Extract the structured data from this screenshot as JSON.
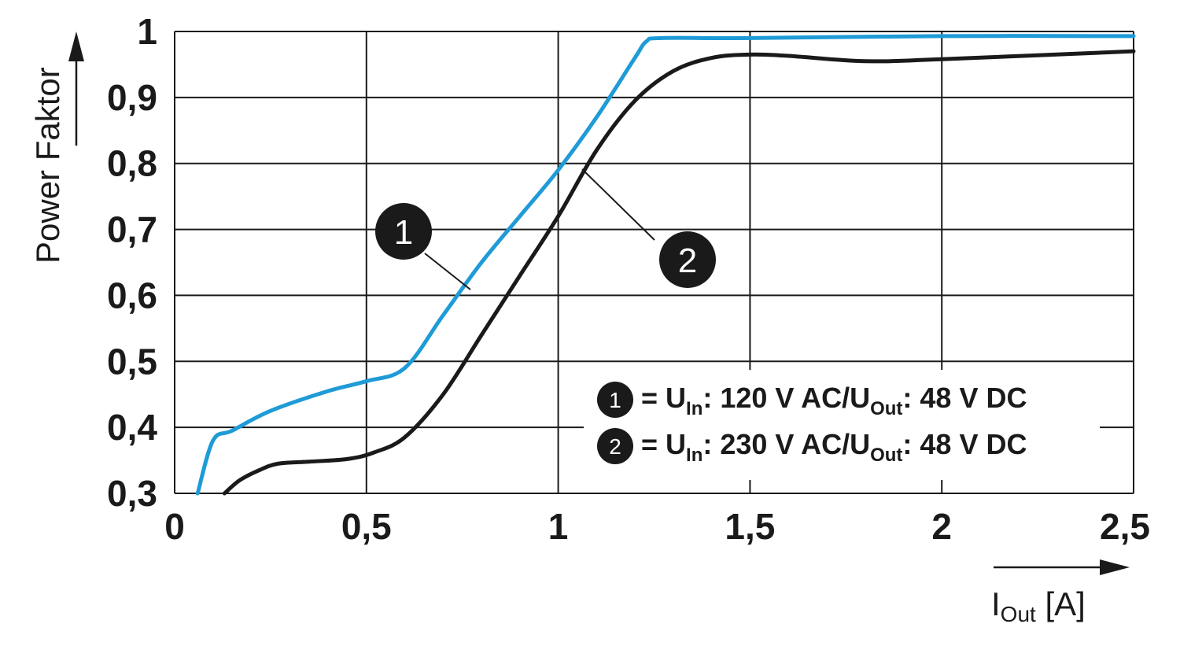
{
  "chart_data": {
    "type": "line",
    "xlim": [
      0,
      2.5
    ],
    "ylim": [
      0.3,
      1.0
    ],
    "x_ticks": [
      0,
      0.5,
      1,
      1.5,
      2,
      2.5
    ],
    "x_tick_labels": [
      "0",
      "0,5",
      "1",
      "1,5",
      "2",
      "2,5"
    ],
    "y_ticks": [
      0.3,
      0.4,
      0.5,
      0.6,
      0.7,
      0.8,
      0.9,
      1.0
    ],
    "y_tick_labels": [
      "0,3",
      "0,4",
      "0,5",
      "0,6",
      "0,7",
      "0,8",
      "0,9",
      "1"
    ],
    "grid": true,
    "ylabel": "Power Faktor",
    "xlabel": {
      "main": "I",
      "sub": "Out",
      "unit": " [A]"
    },
    "series": [
      {
        "marker": "1",
        "color": "#1f9bd7",
        "x": [
          0.06,
          0.1,
          0.15,
          0.25,
          0.4,
          0.5,
          0.6,
          0.7,
          0.8,
          0.9,
          1.0,
          1.1,
          1.2,
          1.23,
          1.27,
          1.5,
          2.0,
          2.5
        ],
        "y": [
          0.3,
          0.38,
          0.395,
          0.425,
          0.455,
          0.47,
          0.49,
          0.57,
          0.65,
          0.72,
          0.79,
          0.87,
          0.96,
          0.985,
          0.99,
          0.99,
          0.993,
          0.993
        ]
      },
      {
        "marker": "2",
        "color": "#1a1a1a",
        "x": [
          0.13,
          0.17,
          0.22,
          0.27,
          0.35,
          0.45,
          0.52,
          0.6,
          0.7,
          0.8,
          0.9,
          1.0,
          1.1,
          1.2,
          1.3,
          1.4,
          1.5,
          1.6,
          1.8,
          2.0,
          2.5
        ],
        "y": [
          0.3,
          0.32,
          0.335,
          0.345,
          0.348,
          0.352,
          0.362,
          0.385,
          0.45,
          0.54,
          0.63,
          0.72,
          0.82,
          0.895,
          0.94,
          0.96,
          0.965,
          0.963,
          0.955,
          0.958,
          0.97
        ]
      }
    ],
    "legend": [
      {
        "marker": "1",
        "prefix": "= U",
        "sub1": "In",
        "mid": ": 120 V AC/U",
        "sub2": "Out",
        "suffix": ": 48 V DC"
      },
      {
        "marker": "2",
        "prefix": "= U",
        "sub1": "In",
        "mid": ": 230 V AC/U",
        "sub2": "Out",
        "suffix": ": 48 V DC"
      }
    ]
  }
}
